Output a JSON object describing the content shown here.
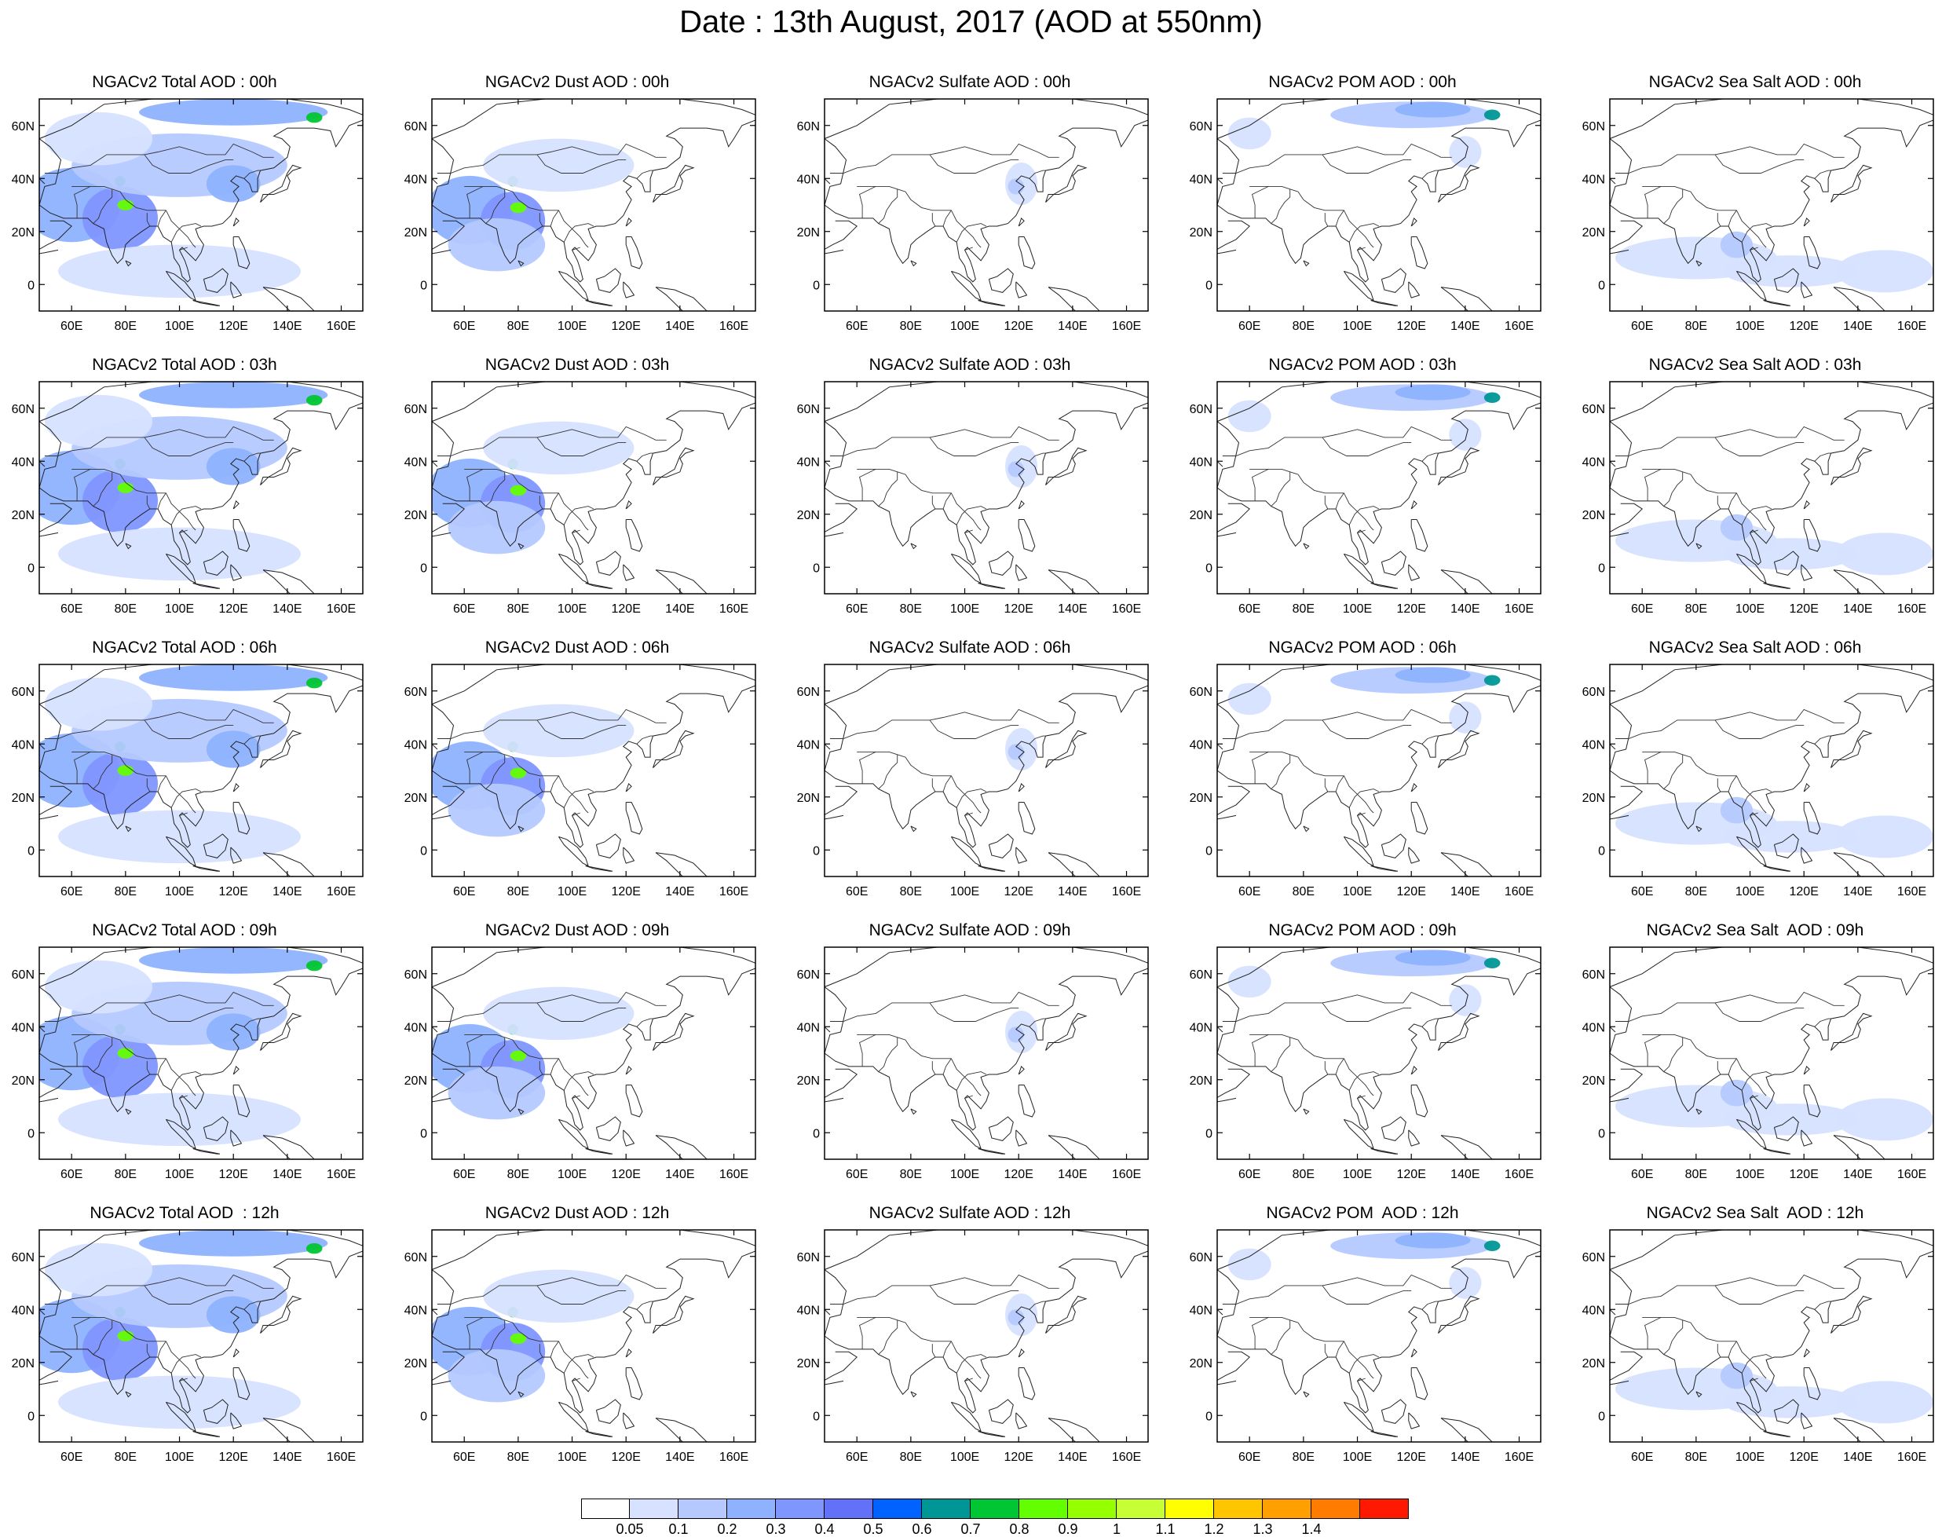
{
  "title": "Date : 13th August, 2017 (AOD at 550nm)",
  "map": {
    "lon_range": [
      48,
      168
    ],
    "lat_range": [
      -10,
      70
    ],
    "lon_ticks": [
      {
        "value": 60,
        "label": "60E"
      },
      {
        "value": 80,
        "label": "80E"
      },
      {
        "value": 100,
        "label": "100E"
      },
      {
        "value": 120,
        "label": "120E"
      },
      {
        "value": 140,
        "label": "140E"
      },
      {
        "value": 160,
        "label": "160E"
      }
    ],
    "lat_ticks": [
      {
        "value": 60,
        "label": "60N"
      },
      {
        "value": 40,
        "label": "40N"
      },
      {
        "value": 20,
        "label": "20N"
      },
      {
        "value": 0,
        "label": "0"
      }
    ]
  },
  "colorbar": {
    "colors": [
      "#ffffff",
      "#d6e2ff",
      "#b5c9ff",
      "#8eb2ff",
      "#7f96ff",
      "#6370f8",
      "#0063ff",
      "#009696",
      "#00c633",
      "#63ff00",
      "#96ff00",
      "#c6ff33",
      "#ffff00",
      "#ffc600",
      "#ffa000",
      "#ff7c00",
      "#ff1900"
    ],
    "labels": [
      "0.05",
      "0.1",
      "0.2",
      "0.3",
      "0.4",
      "0.5",
      "0.6",
      "0.7",
      "0.8",
      "0.9",
      "1",
      "1.1",
      "1.2",
      "1.3",
      "1.4"
    ]
  },
  "panels": [
    [
      "NGACv2 Total AOD : 00h",
      "NGACv2 Dust AOD : 00h",
      "NGACv2 Sulfate AOD : 00h",
      "NGACv2 POM AOD : 00h",
      "NGACv2 Sea Salt AOD : 00h"
    ],
    [
      "NGACv2 Total AOD : 03h",
      "NGACv2 Dust AOD : 03h",
      "NGACv2 Sulfate AOD : 03h",
      "NGACv2 POM AOD : 03h",
      "NGACv2 Sea Salt AOD : 03h"
    ],
    [
      "NGACv2 Total AOD : 06h",
      "NGACv2 Dust AOD : 06h",
      "NGACv2 Sulfate AOD : 06h",
      "NGACv2 POM AOD : 06h",
      "NGACv2 Sea Salt AOD : 06h"
    ],
    [
      "NGACv2 Total AOD : 09h",
      "NGACv2 Dust AOD : 09h",
      "NGACv2 Sulfate AOD : 09h",
      "NGACv2 POM AOD : 09h",
      "NGACv2 Sea Salt  AOD : 09h"
    ],
    [
      "NGACv2 Total AOD  : 12h",
      "NGACv2 Dust AOD : 12h",
      "NGACv2 Sulfate AOD : 12h",
      "NGACv2 POM  AOD : 12h",
      "NGACv2 Sea Salt  AOD : 12h"
    ]
  ],
  "panel_species": [
    "total",
    "dust",
    "sulfate",
    "pom",
    "seasalt"
  ],
  "plumes": {
    "total": [
      {
        "lon": 60,
        "lat": 30,
        "rx": 18,
        "ry": 14,
        "level": 3
      },
      {
        "lon": 78,
        "lat": 25,
        "rx": 14,
        "ry": 12,
        "level": 4
      },
      {
        "lon": 80,
        "lat": 30,
        "rx": 3,
        "ry": 2,
        "level": 9
      },
      {
        "lon": 78,
        "lat": 39,
        "rx": 2,
        "ry": 2,
        "level": 8
      },
      {
        "lon": 100,
        "lat": 45,
        "rx": 40,
        "ry": 12,
        "level": 2
      },
      {
        "lon": 120,
        "lat": 38,
        "rx": 10,
        "ry": 7,
        "level": 3
      },
      {
        "lon": 120,
        "lat": 65,
        "rx": 35,
        "ry": 5,
        "level": 3
      },
      {
        "lon": 150,
        "lat": 63,
        "rx": 3,
        "ry": 2,
        "level": 8
      },
      {
        "lon": 100,
        "lat": 5,
        "rx": 45,
        "ry": 10,
        "level": 1
      },
      {
        "lon": 70,
        "lat": 55,
        "rx": 20,
        "ry": 10,
        "level": 1
      }
    ],
    "dust": [
      {
        "lon": 62,
        "lat": 28,
        "rx": 16,
        "ry": 13,
        "level": 3
      },
      {
        "lon": 78,
        "lat": 24,
        "rx": 12,
        "ry": 11,
        "level": 4
      },
      {
        "lon": 80,
        "lat": 29,
        "rx": 3,
        "ry": 2,
        "level": 9
      },
      {
        "lon": 78,
        "lat": 39,
        "rx": 2,
        "ry": 2,
        "level": 8
      },
      {
        "lon": 95,
        "lat": 45,
        "rx": 28,
        "ry": 10,
        "level": 1
      },
      {
        "lon": 72,
        "lat": 15,
        "rx": 18,
        "ry": 10,
        "level": 2
      }
    ],
    "sulfate": [
      {
        "lon": 121,
        "lat": 38,
        "rx": 6,
        "ry": 8,
        "level": 1
      },
      {
        "lon": 119,
        "lat": 37,
        "rx": 3,
        "ry": 3,
        "level": 2
      }
    ],
    "pom": [
      {
        "lon": 120,
        "lat": 64,
        "rx": 30,
        "ry": 5,
        "level": 2
      },
      {
        "lon": 128,
        "lat": 66,
        "rx": 14,
        "ry": 3,
        "level": 3
      },
      {
        "lon": 150,
        "lat": 64,
        "rx": 3,
        "ry": 2,
        "level": 7
      },
      {
        "lon": 60,
        "lat": 57,
        "rx": 8,
        "ry": 6,
        "level": 1
      },
      {
        "lon": 140,
        "lat": 50,
        "rx": 6,
        "ry": 6,
        "level": 1
      }
    ],
    "seasalt": [
      {
        "lon": 80,
        "lat": 10,
        "rx": 30,
        "ry": 8,
        "level": 1
      },
      {
        "lon": 115,
        "lat": 5,
        "rx": 25,
        "ry": 6,
        "level": 1
      },
      {
        "lon": 150,
        "lat": 5,
        "rx": 18,
        "ry": 8,
        "level": 1
      },
      {
        "lon": 95,
        "lat": 15,
        "rx": 6,
        "ry": 5,
        "level": 2
      }
    ]
  }
}
